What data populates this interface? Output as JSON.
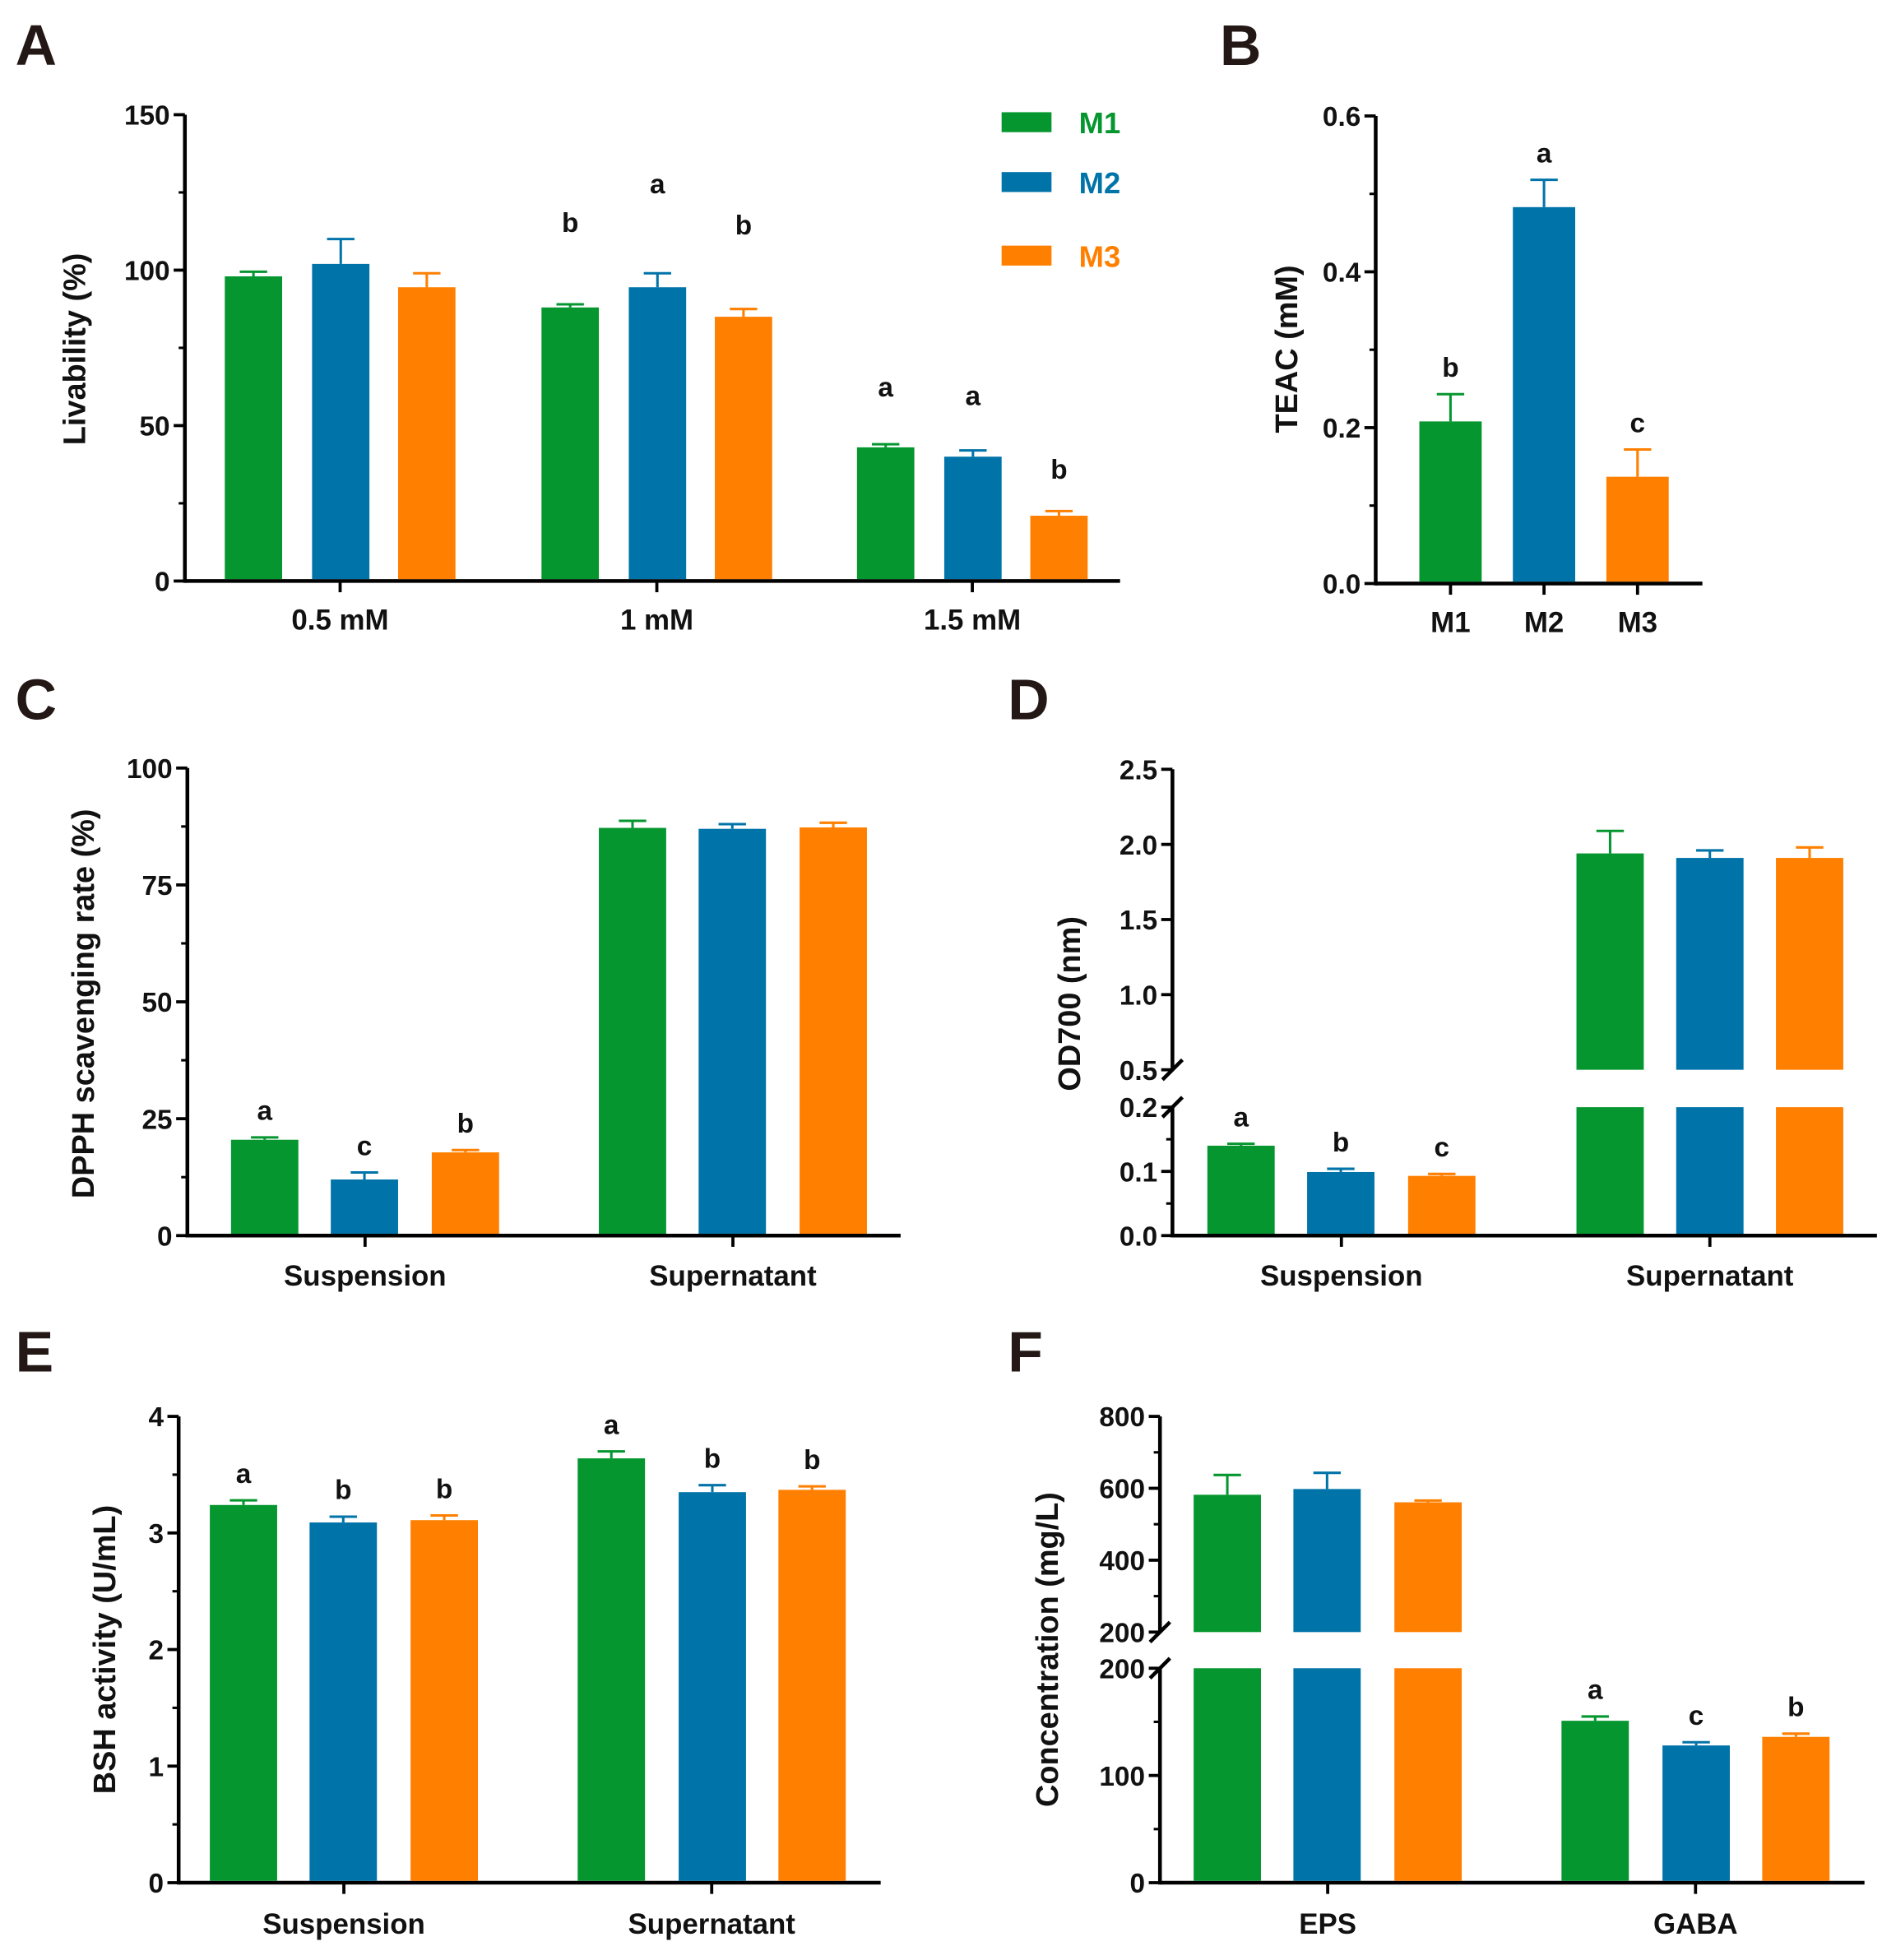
{
  "colors": {
    "M1": "#05962f",
    "M2": "#0073a8",
    "M3": "#ff7f00"
  },
  "legend": [
    "M1",
    "M2",
    "M3"
  ],
  "chart_data": [
    {
      "panel": "A",
      "type": "bar",
      "ylabel": "Livability (%)",
      "ylim": [
        0,
        150
      ],
      "yticks": [
        "0",
        "50",
        "100",
        "150"
      ],
      "categories": [
        "0.5 mM",
        "1 mM",
        "1.5 mM"
      ],
      "series": [
        {
          "name": "M1",
          "values": [
            98,
            88,
            43
          ],
          "errors": [
            1.5,
            1,
            1
          ]
        },
        {
          "name": "M2",
          "values": [
            102,
            94.5,
            40
          ],
          "errors": [
            8,
            4.5,
            2
          ]
        },
        {
          "name": "M3",
          "values": [
            94.5,
            85,
            21
          ],
          "errors": [
            4.5,
            2.5,
            1.5
          ]
        }
      ],
      "letters": [
        [
          "",
          "",
          ""
        ],
        [
          "b",
          "a",
          "b"
        ],
        [
          "a",
          "a",
          "b"
        ]
      ]
    },
    {
      "panel": "B",
      "type": "bar",
      "ylabel": "TEAC (mM)",
      "ylim": [
        0,
        0.6
      ],
      "yticks": [
        "0.0",
        "0.2",
        "0.4",
        "0.6"
      ],
      "categories": [
        "M1",
        "M2",
        "M3"
      ],
      "series": [
        {
          "name": "M1",
          "values": [
            0.208,
            0.483,
            0.137
          ],
          "errors": [
            0.035,
            0.035,
            0.035
          ]
        }
      ],
      "letters": [
        [
          "b",
          "a",
          "c"
        ]
      ]
    },
    {
      "panel": "C",
      "type": "bar",
      "ylabel": "DPPH scavenging rate (%)",
      "ylim": [
        0,
        100
      ],
      "yticks": [
        "0",
        "25",
        "50",
        "75",
        "100"
      ],
      "categories": [
        "Suspension",
        "Supernatant"
      ],
      "series": [
        {
          "name": "M1",
          "values": [
            20.5,
            87.2
          ],
          "errors": [
            0.5,
            1.5
          ]
        },
        {
          "name": "M2",
          "values": [
            12,
            87
          ],
          "errors": [
            1.5,
            1
          ]
        },
        {
          "name": "M3",
          "values": [
            17.8,
            87.3
          ],
          "errors": [
            0.5,
            1
          ]
        }
      ],
      "letters": [
        [
          "a",
          "c",
          "b"
        ],
        [
          "",
          "",
          ""
        ]
      ]
    },
    {
      "panel": "D",
      "type": "bar",
      "ylabel": "OD700 (nm)",
      "ylim": [
        0,
        2.5
      ],
      "axis_break": [
        0.2,
        0.5
      ],
      "yticks": [
        "0.0",
        "0.1",
        "0.2",
        "0.5",
        "1.0",
        "1.5",
        "2.0",
        "2.5"
      ],
      "categories": [
        "Suspension",
        "Supernatant"
      ],
      "series": [
        {
          "name": "M1",
          "values": [
            0.14,
            1.94
          ],
          "errors": [
            0.003,
            0.15
          ]
        },
        {
          "name": "M2",
          "values": [
            0.099,
            1.91
          ],
          "errors": [
            0.005,
            0.05
          ]
        },
        {
          "name": "M3",
          "values": [
            0.093,
            1.91
          ],
          "errors": [
            0.003,
            0.07
          ]
        }
      ],
      "letters": [
        [
          "a",
          "b",
          "c"
        ],
        [
          "",
          "",
          ""
        ]
      ]
    },
    {
      "panel": "E",
      "type": "bar",
      "ylabel": "BSH activity (U/mL)",
      "ylim": [
        0,
        4
      ],
      "yticks": [
        "0",
        "1",
        "2",
        "3",
        "4"
      ],
      "categories": [
        "Suspension",
        "Supernatant"
      ],
      "series": [
        {
          "name": "M1",
          "values": [
            3.24,
            3.64
          ],
          "errors": [
            0.04,
            0.06
          ]
        },
        {
          "name": "M2",
          "values": [
            3.09,
            3.35
          ],
          "errors": [
            0.05,
            0.06
          ]
        },
        {
          "name": "M3",
          "values": [
            3.11,
            3.37
          ],
          "errors": [
            0.04,
            0.03
          ]
        }
      ],
      "letters": [
        [
          "a",
          "b",
          "b"
        ],
        [
          "a",
          "b",
          "b"
        ]
      ]
    },
    {
      "panel": "F",
      "type": "bar",
      "ylabel": "Concentration (mg/L)",
      "ylim": [
        0,
        800
      ],
      "axis_break": [
        200,
        200
      ],
      "yticks": [
        "0",
        "100",
        "200",
        "200",
        "400",
        "600",
        "800"
      ],
      "categories": [
        "EPS",
        "GABA"
      ],
      "series": [
        {
          "name": "M1",
          "values": [
            582,
            151
          ],
          "errors": [
            55,
            4
          ]
        },
        {
          "name": "M2",
          "values": [
            598,
            128
          ],
          "errors": [
            45,
            3
          ]
        },
        {
          "name": "M3",
          "values": [
            561,
            136
          ],
          "errors": [
            5,
            3
          ]
        }
      ],
      "letters": [
        [
          "",
          "",
          ""
        ],
        [
          "a",
          "c",
          "b"
        ]
      ]
    }
  ]
}
